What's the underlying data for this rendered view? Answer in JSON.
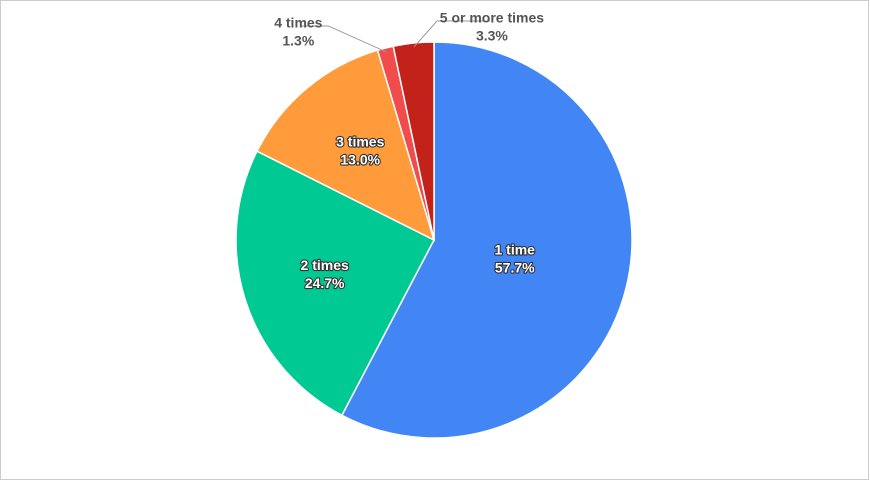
{
  "chart_data": {
    "type": "pie",
    "categories": [
      "1 time",
      "2 times",
      "3 times",
      "4 times",
      "5 or more times"
    ],
    "values": [
      57.7,
      24.7,
      13.0,
      1.3,
      3.3
    ],
    "value_labels": [
      "57.7%",
      "24.7%",
      "13.0%",
      "1.3%",
      "3.3%"
    ],
    "colors": [
      "#4285f4",
      "#00c994",
      "#ff9b3a",
      "#f24b4b",
      "#c2221a"
    ]
  }
}
